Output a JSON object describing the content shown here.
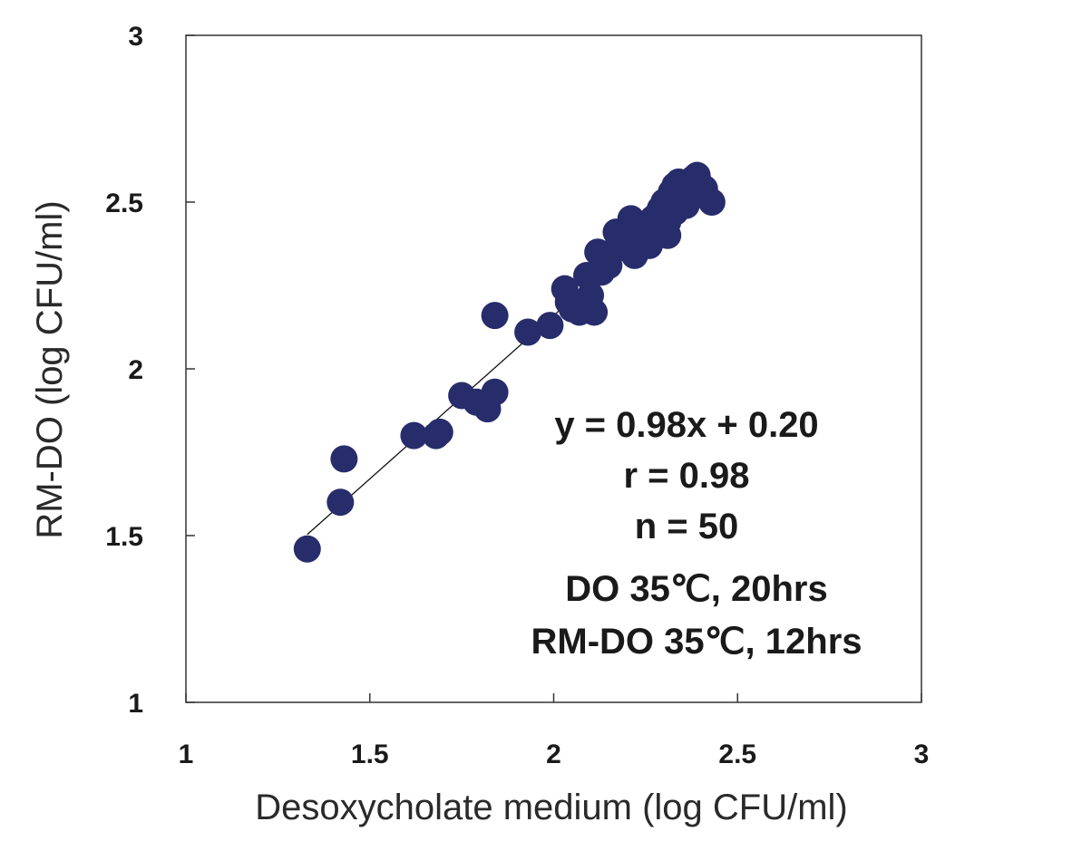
{
  "chart_data": {
    "type": "scatter",
    "xlabel": "Desoxycholate medium (log  CFU/ml)",
    "ylabel": "RM-DO (log  CFU/ml)",
    "xlim": [
      1,
      3
    ],
    "ylim": [
      1,
      3
    ],
    "x_ticks": [
      "1",
      "1.5",
      "2",
      "2.5",
      "3"
    ],
    "y_ticks": [
      "1",
      "1.5",
      "2",
      "2.5",
      "3"
    ],
    "grid": false,
    "marker_color": "#272c6b",
    "trendline": {
      "slope": 0.98,
      "intercept": 0.2,
      "x_range": [
        1.33,
        2.41
      ]
    },
    "annotations": [
      "y = 0.98x + 0.20",
      "r = 0.98",
      "n = 50",
      "DO 35℃, 20hrs",
      "RM-DO 35℃, 12hrs"
    ],
    "points": [
      [
        1.33,
        1.46
      ],
      [
        1.42,
        1.6
      ],
      [
        1.43,
        1.73
      ],
      [
        1.62,
        1.8
      ],
      [
        1.69,
        1.81
      ],
      [
        1.68,
        1.8
      ],
      [
        1.75,
        1.92
      ],
      [
        1.79,
        1.9
      ],
      [
        1.82,
        1.88
      ],
      [
        1.84,
        1.93
      ],
      [
        1.84,
        2.16
      ],
      [
        1.93,
        2.11
      ],
      [
        1.99,
        2.13
      ],
      [
        2.03,
        2.24
      ],
      [
        2.04,
        2.2
      ],
      [
        2.05,
        2.18
      ],
      [
        2.07,
        2.17
      ],
      [
        2.09,
        2.28
      ],
      [
        2.1,
        2.22
      ],
      [
        2.11,
        2.17
      ],
      [
        2.12,
        2.35
      ],
      [
        2.13,
        2.29
      ],
      [
        2.15,
        2.31
      ],
      [
        2.17,
        2.41
      ],
      [
        2.17,
        2.36
      ],
      [
        2.19,
        2.38
      ],
      [
        2.21,
        2.45
      ],
      [
        2.22,
        2.34
      ],
      [
        2.23,
        2.42
      ],
      [
        2.24,
        2.43
      ],
      [
        2.25,
        2.39
      ],
      [
        2.26,
        2.37
      ],
      [
        2.27,
        2.45
      ],
      [
        2.28,
        2.46
      ],
      [
        2.29,
        2.48
      ],
      [
        2.3,
        2.5
      ],
      [
        2.31,
        2.44
      ],
      [
        2.31,
        2.4
      ],
      [
        2.32,
        2.53
      ],
      [
        2.33,
        2.47
      ],
      [
        2.33,
        2.55
      ],
      [
        2.34,
        2.56
      ],
      [
        2.35,
        2.52
      ],
      [
        2.36,
        2.49
      ],
      [
        2.37,
        2.51
      ],
      [
        2.38,
        2.57
      ],
      [
        2.39,
        2.58
      ],
      [
        2.4,
        2.55
      ],
      [
        2.41,
        2.54
      ],
      [
        2.43,
        2.5
      ]
    ]
  }
}
